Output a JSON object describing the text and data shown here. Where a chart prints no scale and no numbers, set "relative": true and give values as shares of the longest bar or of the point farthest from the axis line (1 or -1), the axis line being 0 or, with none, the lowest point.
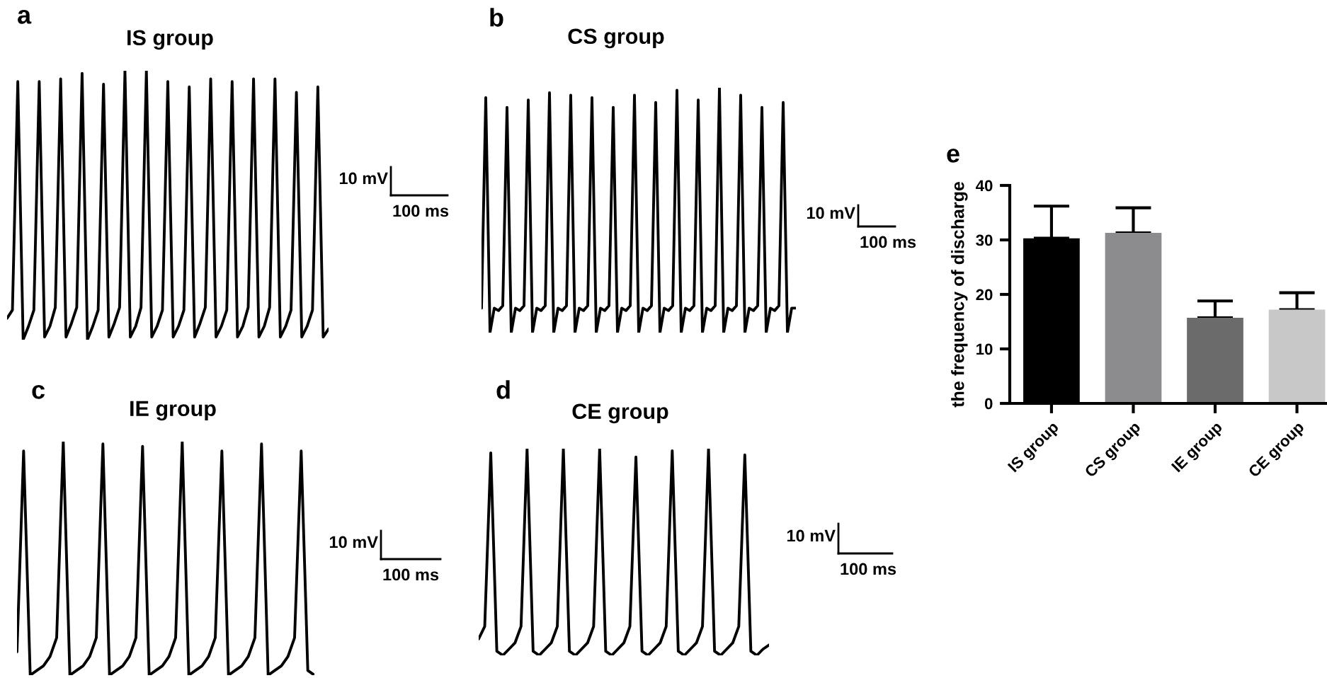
{
  "chart_data": [
    {
      "type": "line",
      "relative": true,
      "title": "IS group",
      "annotations": [
        "a",
        "10 mV",
        "100 ms"
      ],
      "categories": [
        null,
        null,
        null,
        null,
        null,
        null,
        null,
        null,
        null,
        null,
        null,
        null,
        null,
        null,
        null,
        null,
        null,
        null,
        null,
        null,
        null,
        null,
        null,
        null,
        null,
        null,
        null,
        null,
        null,
        null,
        null,
        null,
        null,
        null,
        null,
        null,
        null,
        null,
        null,
        null,
        null,
        null,
        null,
        null,
        null,
        null,
        null,
        null,
        null,
        null,
        null,
        null,
        null,
        null,
        null,
        null,
        null,
        null,
        null,
        null,
        null
      ],
      "series": [
        {
          "color": "#000000",
          "values": [
            0.08,
            0.11,
            0.96,
            0.0,
            0.05,
            0.11,
            0.96,
            0.01,
            0.05,
            0.12,
            0.97,
            0.01,
            0.06,
            0.12,
            0.99,
            0.0,
            0.05,
            0.11,
            0.95,
            0.01,
            0.06,
            0.12,
            1.0,
            0.01,
            0.05,
            0.12,
            1.0,
            0.01,
            0.05,
            0.11,
            0.96,
            0.01,
            0.05,
            0.11,
            0.94,
            0.01,
            0.06,
            0.12,
            0.97,
            0.01,
            0.05,
            0.11,
            0.96,
            0.01,
            0.05,
            0.12,
            0.97,
            0.01,
            0.05,
            0.12,
            0.97,
            0.01,
            0.05,
            0.11,
            0.92,
            0.01,
            0.05,
            0.11,
            0.94,
            0.01,
            0.04
          ]
        }
      ]
    },
    {
      "type": "line",
      "relative": true,
      "title": "CS group",
      "annotations": [
        "b",
        "10 mV",
        "100 ms"
      ],
      "categories": [
        null,
        null,
        null,
        null,
        null,
        null,
        null,
        null,
        null,
        null,
        null,
        null,
        null,
        null,
        null,
        null,
        null,
        null,
        null,
        null,
        null,
        null,
        null,
        null,
        null,
        null,
        null,
        null,
        null,
        null,
        null,
        null,
        null,
        null,
        null,
        null,
        null,
        null,
        null,
        null,
        null,
        null,
        null,
        null,
        null,
        null,
        null,
        null,
        null,
        null,
        null,
        null,
        null,
        null,
        null,
        null,
        null,
        null,
        null,
        null,
        null,
        null,
        null,
        null,
        null,
        null,
        null,
        null,
        null,
        null,
        null,
        null,
        null,
        null,
        null
      ],
      "series": [
        {
          "color": "#000000",
          "values": [
            0.1,
            0.96,
            0.0,
            0.1,
            0.09,
            0.11,
            0.92,
            0.0,
            0.1,
            0.09,
            0.11,
            0.95,
            0.0,
            0.1,
            0.09,
            0.11,
            0.98,
            0.0,
            0.1,
            0.09,
            0.11,
            0.97,
            0.0,
            0.1,
            0.09,
            0.11,
            0.96,
            0.0,
            0.1,
            0.09,
            0.11,
            0.92,
            0.0,
            0.1,
            0.09,
            0.11,
            0.97,
            0.0,
            0.1,
            0.09,
            0.11,
            0.94,
            0.0,
            0.1,
            0.09,
            0.11,
            0.99,
            0.0,
            0.1,
            0.09,
            0.11,
            0.95,
            0.0,
            0.1,
            0.09,
            0.11,
            1.0,
            0.0,
            0.1,
            0.09,
            0.11,
            0.97,
            0.0,
            0.1,
            0.09,
            0.11,
            0.92,
            0.0,
            0.1,
            0.09,
            0.11,
            0.94,
            0.0,
            0.1,
            0.1
          ]
        }
      ]
    },
    {
      "type": "line",
      "relative": true,
      "title": "IE group",
      "annotations": [
        "c",
        "10 mV",
        "100 ms"
      ],
      "categories": [
        null,
        null,
        null,
        null,
        null,
        null,
        null,
        null,
        null,
        null,
        null,
        null,
        null,
        null,
        null,
        null,
        null,
        null,
        null,
        null,
        null,
        null,
        null,
        null,
        null,
        null,
        null,
        null,
        null,
        null,
        null,
        null,
        null,
        null,
        null,
        null,
        null,
        null,
        null,
        null,
        null,
        null,
        null,
        null,
        null,
        null
      ],
      "series": [
        {
          "color": "#000000",
          "values": [
            0.1,
            0.96,
            0.0,
            0.02,
            0.04,
            0.08,
            0.16,
            1.0,
            0.0,
            0.02,
            0.04,
            0.08,
            0.16,
            0.99,
            0.0,
            0.02,
            0.04,
            0.08,
            0.16,
            0.98,
            0.0,
            0.02,
            0.04,
            0.08,
            0.16,
            1.0,
            0.0,
            0.02,
            0.04,
            0.08,
            0.16,
            0.96,
            0.0,
            0.02,
            0.04,
            0.08,
            0.16,
            0.99,
            0.0,
            0.02,
            0.04,
            0.08,
            0.16,
            0.96,
            0.02,
            0.0
          ]
        }
      ]
    },
    {
      "type": "line",
      "relative": true,
      "title": "CE group",
      "annotations": [
        "d",
        "10 mV",
        "100 ms"
      ],
      "categories": [
        null,
        null,
        null,
        null,
        null,
        null,
        null,
        null,
        null,
        null,
        null,
        null,
        null,
        null,
        null,
        null,
        null,
        null,
        null,
        null,
        null,
        null,
        null,
        null,
        null,
        null,
        null,
        null,
        null,
        null,
        null,
        null,
        null,
        null,
        null,
        null,
        null,
        null,
        null,
        null,
        null,
        null,
        null,
        null,
        null,
        null,
        null,
        null,
        null
      ],
      "series": [
        {
          "color": "#000000",
          "values": [
            0.08,
            0.14,
            0.98,
            0.02,
            0.0,
            0.03,
            0.06,
            0.14,
            1.0,
            0.02,
            0.0,
            0.03,
            0.06,
            0.14,
            1.0,
            0.02,
            0.0,
            0.03,
            0.06,
            0.14,
            1.0,
            0.02,
            0.0,
            0.03,
            0.06,
            0.14,
            0.96,
            0.02,
            0.0,
            0.03,
            0.06,
            0.14,
            0.99,
            0.02,
            0.0,
            0.03,
            0.06,
            0.14,
            1.0,
            0.02,
            0.0,
            0.03,
            0.06,
            0.14,
            0.97,
            0.02,
            0.0,
            0.03,
            0.05
          ]
        }
      ]
    },
    {
      "type": "bar",
      "annotations": [
        "e"
      ],
      "ylabel": "the frequency of discharge",
      "categories": [
        "IS group",
        "CS group",
        "IE group",
        "CE group"
      ],
      "values": [
        30.3,
        31.3,
        15.7,
        17.2
      ],
      "errors": [
        [
          30.3,
          36.2
        ],
        [
          31.3,
          35.9
        ],
        [
          15.7,
          18.8
        ],
        [
          17.2,
          20.3
        ]
      ],
      "colors": [
        "#000000",
        "#8c8c8e",
        "#6b6b6b",
        "#c8c8c8"
      ],
      "ylim": [
        0,
        40
      ],
      "yticks": [
        0,
        10,
        20,
        30,
        40
      ]
    }
  ]
}
